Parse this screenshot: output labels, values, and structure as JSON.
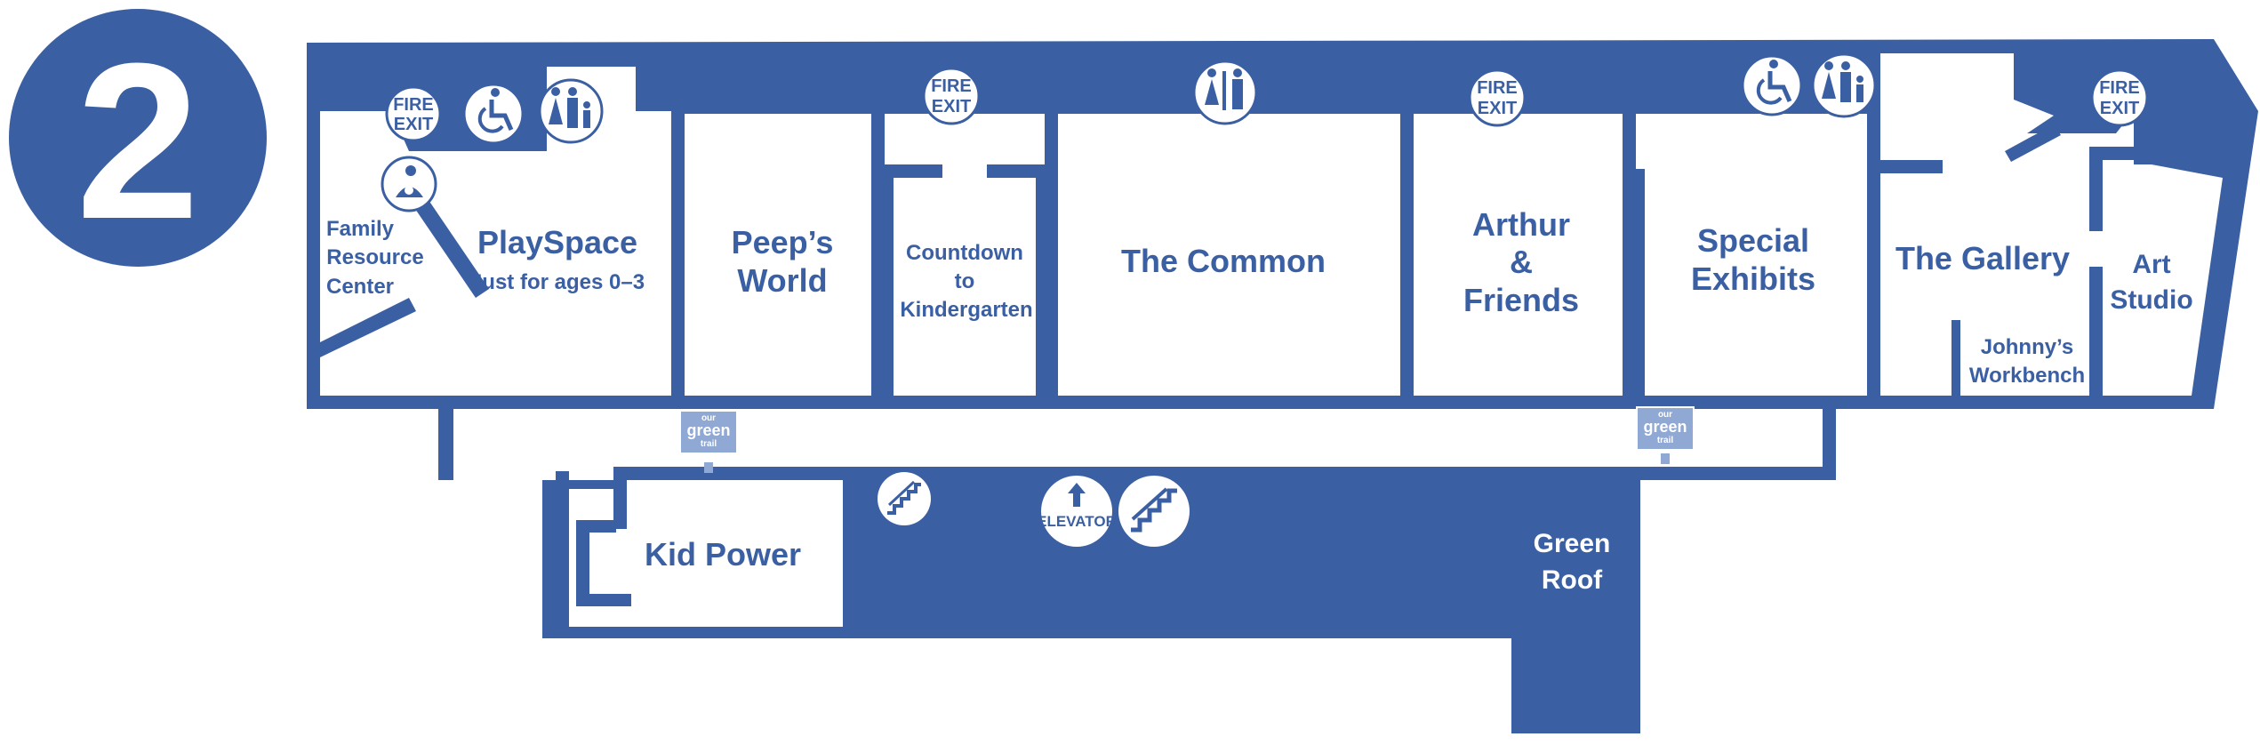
{
  "floor": {
    "number": "2"
  },
  "colors": {
    "wall": "#3a5fa3",
    "floor": "#ffffff",
    "sign": "#8fa8d4"
  },
  "rooms": {
    "family_resource_center": [
      "Family",
      "Resource",
      "Center"
    ],
    "playspace": "PlaySpace",
    "playspace_sub": "Just for ages 0–3",
    "peeps_world": [
      "Peep’s",
      "World"
    ],
    "countdown": [
      "Countdown",
      "to",
      "Kindergarten"
    ],
    "the_common": "The Common",
    "arthur_friends": [
      "Arthur",
      "&",
      "Friends"
    ],
    "special_exhibits": [
      "Special",
      "Exhibits"
    ],
    "the_gallery": "The Gallery",
    "johnnys_workbench": [
      "Johnny’s",
      "Workbench"
    ],
    "art_studio": [
      "Art",
      "Studio"
    ],
    "kid_power": "Kid Power",
    "green_roof": [
      "Green",
      "Roof"
    ]
  },
  "icons": {
    "fire_exit": [
      "FIRE",
      "EXIT"
    ],
    "elevator": "ELEVATOR",
    "green_trail": [
      "our",
      "green",
      "trail"
    ]
  },
  "icon_names": [
    "fire-exit-icon",
    "accessible-icon",
    "family-restroom-icon",
    "nursing-room-icon",
    "restroom-icon",
    "stairs-icon",
    "elevator-icon",
    "green-trail-sign-icon"
  ]
}
